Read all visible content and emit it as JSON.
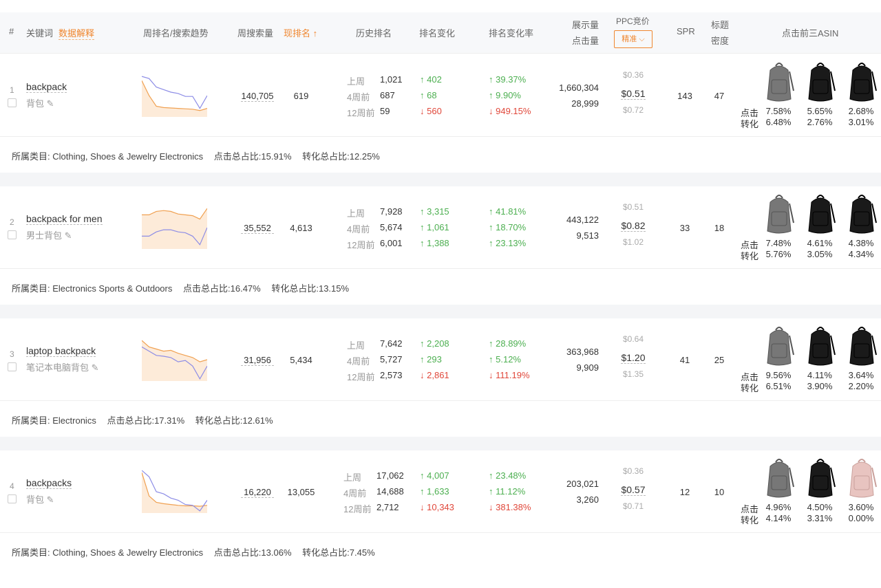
{
  "header": {
    "index": "#",
    "keyword": "关键词",
    "data_explain": "数据解释",
    "trend": "周排名/搜索趋势",
    "weekly_search": "周搜索量",
    "current_rank": "现排名",
    "sort_icon": "arrow-up-icon",
    "history": "历史排名",
    "rank_change": "排名变化",
    "rank_change_rate": "排名变化率",
    "impressions": "展示量",
    "clicks": "点击量",
    "ppc": "PPC竞价",
    "ppc_mode": "精准",
    "spr": "SPR",
    "title_density_1": "标题",
    "title_density_2": "密度",
    "top3": "点击前三ASIN"
  },
  "labels": {
    "last_week": "上周",
    "w4": "4周前",
    "w12": "12周前",
    "click": "点击",
    "conv": "转化",
    "category_prefix": "所属类目: ",
    "click_total": "点击总占比:",
    "conv_total": "转化总占比:"
  },
  "colors": {
    "accent": "#f0862e",
    "up": "#4caf50",
    "down": "#e0473a",
    "search_line": "#8c8ce6",
    "rank_line": "#f0a050"
  },
  "rows": [
    {
      "idx": "1",
      "keyword": "backpack",
      "cn": "背包",
      "weekly_search": "140,705",
      "rank": "619",
      "hist": [
        "1,021",
        "687",
        "59"
      ],
      "chg": [
        [
          "up",
          "402"
        ],
        [
          "up",
          "68"
        ],
        [
          "down",
          "560"
        ]
      ],
      "rate": [
        [
          "up",
          "39.37%"
        ],
        [
          "up",
          "9.90%"
        ],
        [
          "down",
          "949.15%"
        ]
      ],
      "impressions": "1,660,304",
      "clicks": "28,999",
      "ppc": [
        "$0.36",
        "$0.51",
        "$0.72"
      ],
      "spr": "143",
      "density": "47",
      "asin": [
        {
          "click": "7.58%",
          "conv": "6.48%",
          "color": "gray"
        },
        {
          "click": "5.65%",
          "conv": "2.76%",
          "color": "black"
        },
        {
          "click": "2.68%",
          "conv": "3.01%",
          "color": "black"
        }
      ],
      "category": "Clothing, Shoes & Jewelry Electronics",
      "click_total": "15.91%",
      "conv_total": "12.25%",
      "trend_search": [
        95,
        90,
        70,
        64,
        58,
        55,
        48,
        48,
        20,
        50
      ],
      "trend_rank": [
        85,
        50,
        25,
        22,
        21,
        20,
        19,
        18,
        15,
        20
      ]
    },
    {
      "idx": "2",
      "keyword": "backpack for men",
      "cn": "男士背包",
      "weekly_search": "35,552",
      "rank": "4,613",
      "hist": [
        "7,928",
        "5,674",
        "6,001"
      ],
      "chg": [
        [
          "up",
          "3,315"
        ],
        [
          "up",
          "1,061"
        ],
        [
          "up",
          "1,388"
        ]
      ],
      "rate": [
        [
          "up",
          "41.81%"
        ],
        [
          "up",
          "18.70%"
        ],
        [
          "up",
          "23.13%"
        ]
      ],
      "impressions": "443,122",
      "clicks": "9,513",
      "ppc": [
        "$0.51",
        "$0.82",
        "$1.02"
      ],
      "spr": "33",
      "density": "18",
      "asin": [
        {
          "click": "7.48%",
          "conv": "5.76%",
          "color": "gray"
        },
        {
          "click": "4.61%",
          "conv": "3.05%",
          "color": "black"
        },
        {
          "click": "4.38%",
          "conv": "4.34%",
          "color": "black"
        }
      ],
      "category": "Electronics Sports & Outdoors",
      "click_total": "16.47%",
      "conv_total": "13.15%",
      "trend_search": [
        30,
        30,
        40,
        45,
        45,
        40,
        38,
        30,
        10,
        50
      ],
      "trend_rank": [
        80,
        80,
        88,
        90,
        88,
        82,
        80,
        78,
        70,
        95
      ]
    },
    {
      "idx": "3",
      "keyword": "laptop backpack",
      "cn": "笔记本电脑背包",
      "weekly_search": "31,956",
      "rank": "5,434",
      "hist": [
        "7,642",
        "5,727",
        "2,573"
      ],
      "chg": [
        [
          "up",
          "2,208"
        ],
        [
          "up",
          "293"
        ],
        [
          "down",
          "2,861"
        ]
      ],
      "rate": [
        [
          "up",
          "28.89%"
        ],
        [
          "up",
          "5.12%"
        ],
        [
          "down",
          "111.19%"
        ]
      ],
      "impressions": "363,968",
      "clicks": "9,909",
      "ppc": [
        "$0.64",
        "$1.20",
        "$1.35"
      ],
      "spr": "41",
      "density": "25",
      "asin": [
        {
          "click": "9.56%",
          "conv": "6.51%",
          "color": "gray"
        },
        {
          "click": "4.11%",
          "conv": "3.90%",
          "color": "black"
        },
        {
          "click": "3.64%",
          "conv": "2.20%",
          "color": "black"
        }
      ],
      "category": "Electronics",
      "click_total": "17.31%",
      "conv_total": "12.61%",
      "trend_search": [
        80,
        70,
        60,
        58,
        55,
        45,
        48,
        35,
        5,
        35
      ],
      "trend_rank": [
        95,
        80,
        75,
        70,
        72,
        65,
        60,
        55,
        45,
        50
      ]
    },
    {
      "idx": "4",
      "keyword": "backpacks",
      "cn": "背包",
      "weekly_search": "16,220",
      "rank": "13,055",
      "hist": [
        "17,062",
        "14,688",
        "2,712"
      ],
      "chg": [
        [
          "up",
          "4,007"
        ],
        [
          "up",
          "1,633"
        ],
        [
          "down",
          "10,343"
        ]
      ],
      "rate": [
        [
          "up",
          "23.48%"
        ],
        [
          "up",
          "11.12%"
        ],
        [
          "down",
          "381.38%"
        ]
      ],
      "impressions": "203,021",
      "clicks": "3,260",
      "ppc": [
        "$0.36",
        "$0.57",
        "$0.71"
      ],
      "spr": "12",
      "density": "10",
      "asin": [
        {
          "click": "4.96%",
          "conv": "4.14%",
          "color": "gray"
        },
        {
          "click": "4.50%",
          "conv": "3.31%",
          "color": "black"
        },
        {
          "click": "3.60%",
          "conv": "0.00%",
          "color": "pink"
        }
      ],
      "category": "Clothing, Shoes & Jewelry Electronics",
      "click_total": "13.06%",
      "conv_total": "7.45%",
      "trend_search": [
        100,
        85,
        50,
        45,
        35,
        30,
        20,
        18,
        5,
        30
      ],
      "trend_rank": [
        95,
        40,
        25,
        22,
        20,
        18,
        17,
        17,
        16,
        18
      ]
    }
  ]
}
